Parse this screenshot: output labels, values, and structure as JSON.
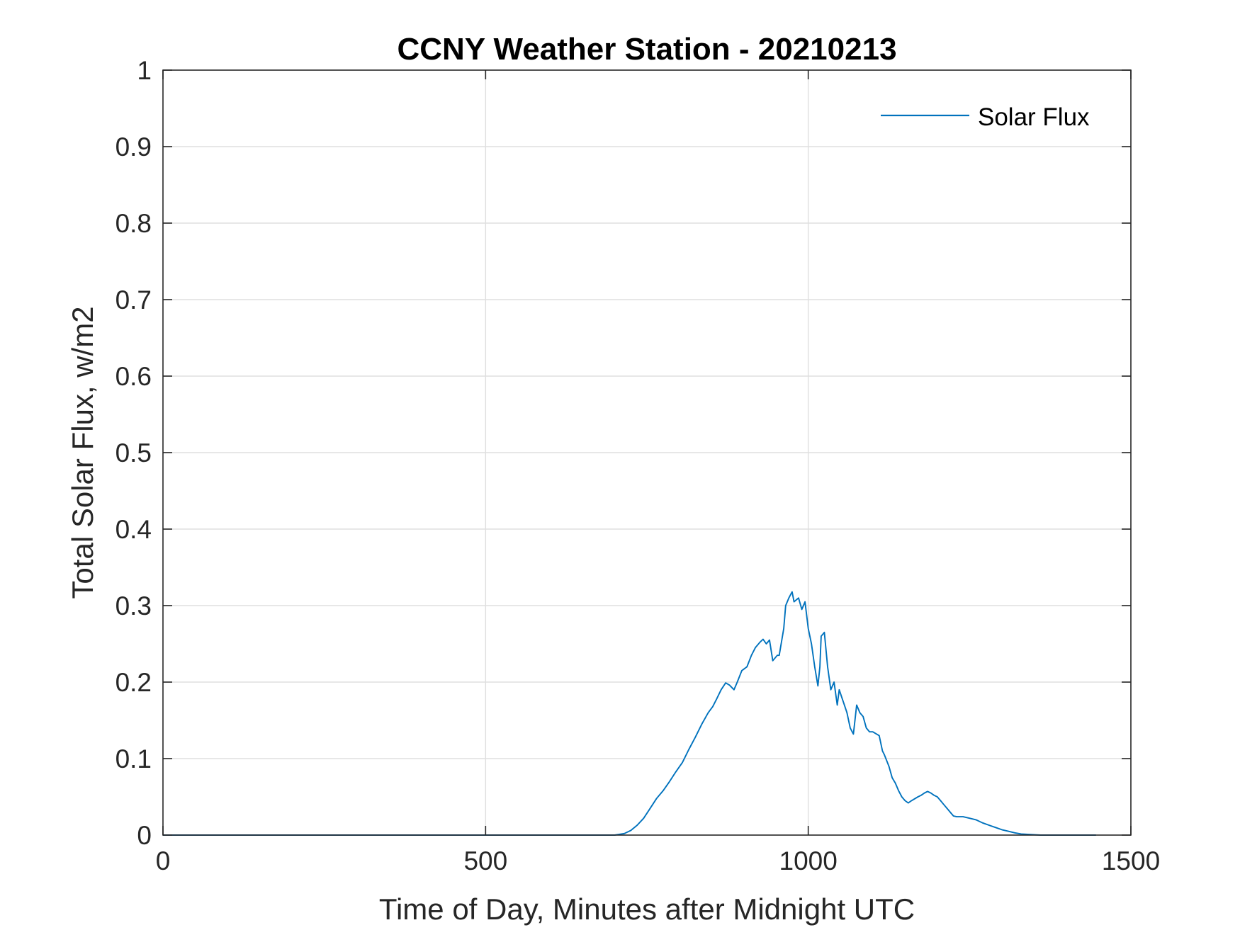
{
  "chart_data": {
    "type": "line",
    "title": "CCNY Weather Station - 20210213",
    "xlabel": "Time of Day, Minutes after Midnight UTC",
    "ylabel": "Total Solar Flux, w/m2",
    "xlim": [
      0,
      1500
    ],
    "ylim": [
      0,
      1
    ],
    "xticks": [
      0,
      500,
      1000,
      1500
    ],
    "xtick_labels": [
      "0",
      "500",
      "1000",
      "1500"
    ],
    "yticks": [
      0,
      0.1,
      0.2,
      0.3,
      0.4,
      0.5,
      0.6,
      0.7,
      0.8,
      0.9,
      1
    ],
    "ytick_labels": [
      "0",
      "0.1",
      "0.2",
      "0.3",
      "0.4",
      "0.5",
      "0.6",
      "0.7",
      "0.8",
      "0.9",
      "1"
    ],
    "grid": true,
    "legend_position": "top-right",
    "series": [
      {
        "name": "Solar Flux",
        "color": "#0072BD",
        "x": [
          0,
          100,
          200,
          300,
          400,
          500,
          600,
          700,
          715,
          725,
          735,
          745,
          755,
          765,
          775,
          785,
          795,
          805,
          815,
          825,
          835,
          845,
          852,
          858,
          865,
          872,
          878,
          885,
          890,
          897,
          905,
          912,
          918,
          925,
          930,
          935,
          940,
          945,
          952,
          955,
          962,
          965,
          970,
          975,
          978,
          985,
          990,
          995,
          1000,
          1005,
          1010,
          1015,
          1018,
          1020,
          1025,
          1030,
          1035,
          1040,
          1045,
          1048,
          1052,
          1056,
          1060,
          1065,
          1070,
          1075,
          1080,
          1085,
          1090,
          1095,
          1100,
          1110,
          1115,
          1118,
          1125,
          1130,
          1135,
          1140,
          1145,
          1150,
          1155,
          1160,
          1170,
          1175,
          1180,
          1185,
          1190,
          1195,
          1200,
          1205,
          1210,
          1215,
          1220,
          1225,
          1230,
          1240,
          1250,
          1260,
          1270,
          1280,
          1290,
          1300,
          1310,
          1320,
          1330,
          1340,
          1350,
          1360,
          1380,
          1400,
          1420,
          1446
        ],
        "y": [
          0,
          0,
          0,
          0,
          0,
          0,
          0,
          0,
          0.002,
          0.006,
          0.013,
          0.022,
          0.035,
          0.048,
          0.058,
          0.07,
          0.083,
          0.095,
          0.112,
          0.128,
          0.145,
          0.16,
          0.168,
          0.178,
          0.19,
          0.199,
          0.196,
          0.19,
          0.2,
          0.215,
          0.22,
          0.235,
          0.245,
          0.252,
          0.256,
          0.25,
          0.255,
          0.228,
          0.235,
          0.235,
          0.27,
          0.3,
          0.31,
          0.318,
          0.305,
          0.31,
          0.295,
          0.305,
          0.27,
          0.25,
          0.22,
          0.195,
          0.22,
          0.26,
          0.265,
          0.22,
          0.19,
          0.2,
          0.17,
          0.19,
          0.18,
          0.17,
          0.16,
          0.14,
          0.132,
          0.17,
          0.16,
          0.155,
          0.14,
          0.135,
          0.135,
          0.13,
          0.11,
          0.105,
          0.09,
          0.075,
          0.068,
          0.058,
          0.05,
          0.045,
          0.042,
          0.045,
          0.05,
          0.052,
          0.055,
          0.057,
          0.055,
          0.052,
          0.05,
          0.045,
          0.04,
          0.035,
          0.03,
          0.025,
          0.024,
          0.024,
          0.022,
          0.02,
          0.016,
          0.013,
          0.01,
          0.007,
          0.005,
          0.003,
          0.0015,
          0.001,
          0.0005,
          0,
          0,
          0,
          0,
          0
        ]
      }
    ]
  }
}
